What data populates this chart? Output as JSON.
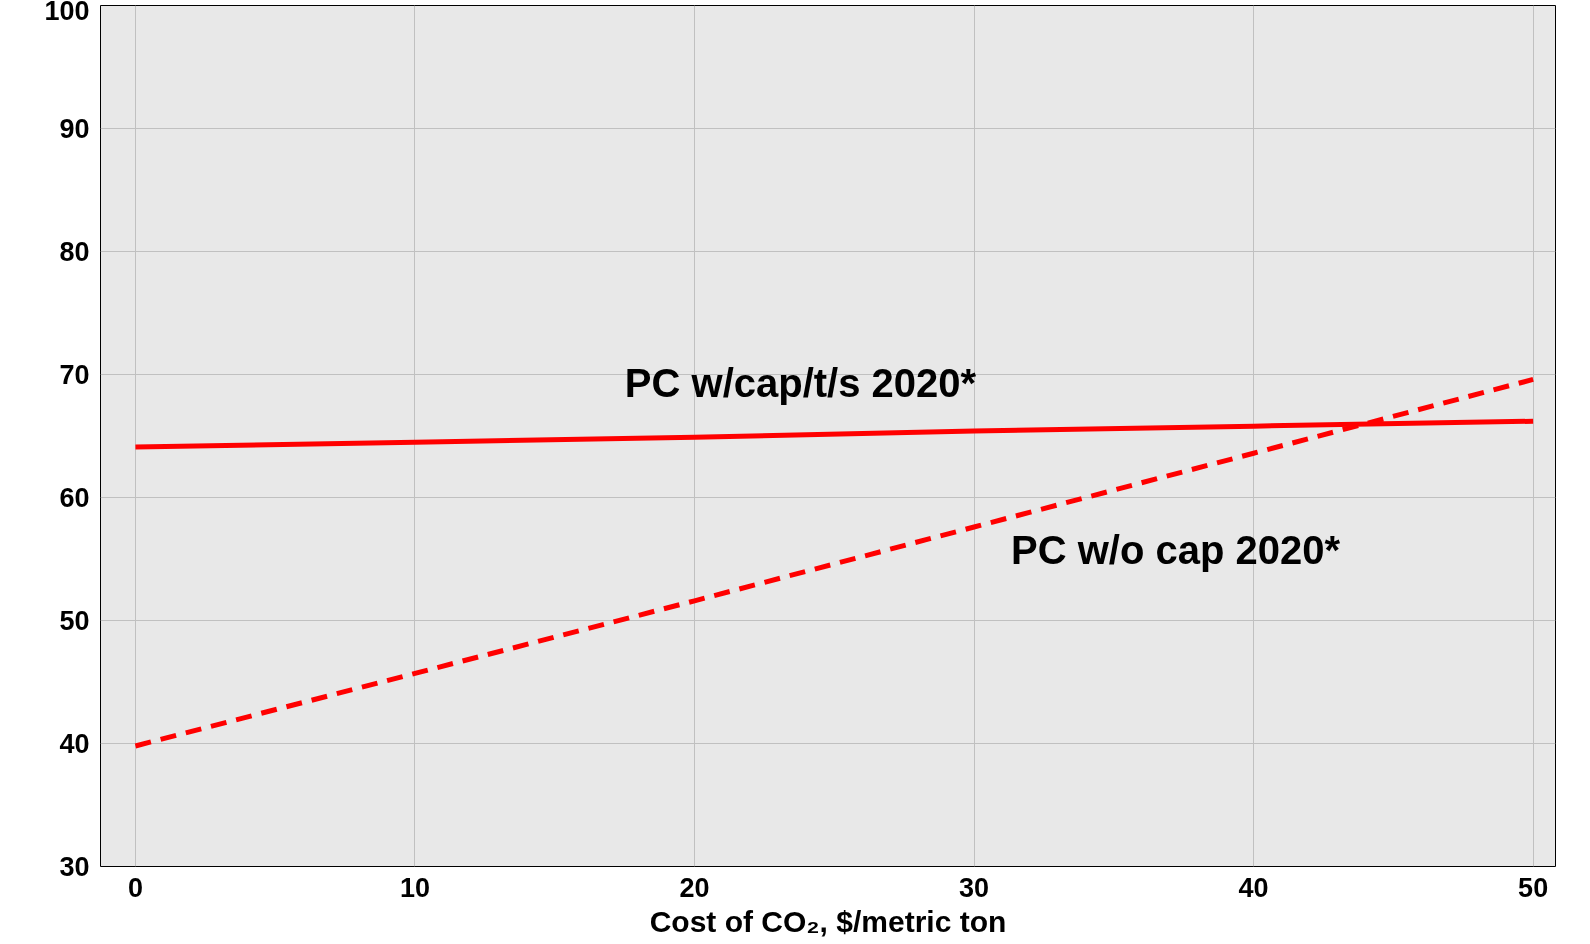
{
  "chart_data": {
    "type": "line",
    "xlabel": "Cost of CO₂, $/metric ton",
    "xlim": [
      -1.25,
      50.8
    ],
    "ylim": [
      30,
      100
    ],
    "xticks": [
      0,
      10,
      20,
      30,
      40,
      50
    ],
    "yticks": [
      30,
      40,
      50,
      60,
      70,
      80,
      90,
      100
    ],
    "grid": true,
    "series": [
      {
        "color": "#ff0000",
        "line_style": "solid",
        "x": [
          0,
          10,
          20,
          30,
          40,
          50
        ],
        "values": [
          64.1,
          64.5,
          64.9,
          65.4,
          65.8,
          66.2
        ]
      },
      {
        "color": "#ff0000",
        "line_style": "dashed",
        "x": [
          0,
          10,
          20,
          30,
          40,
          50
        ],
        "values": [
          39.8,
          45.7,
          51.6,
          57.6,
          63.6,
          69.6
        ]
      }
    ],
    "annotations": [
      "PC w/cap/t/s 2020*",
      "PC w/o cap 2020*"
    ]
  }
}
